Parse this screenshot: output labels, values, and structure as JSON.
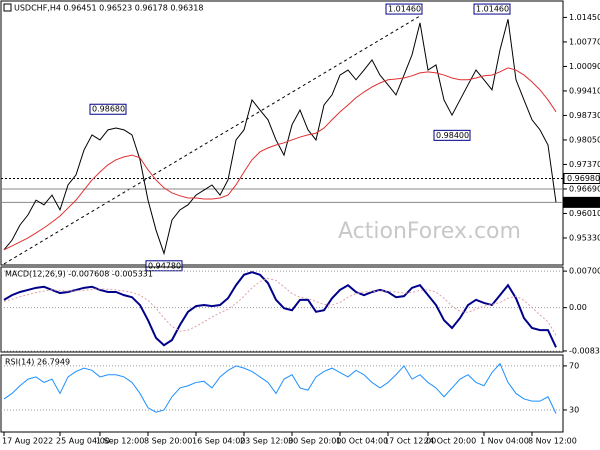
{
  "chart_data": [
    {
      "type": "line",
      "title": "USDCHF,H4 0.96451 0.96523 0.96178 0.96318",
      "watermark": "ActionForex.com",
      "categories": [
        "17 Aug 2022",
        null,
        null,
        null,
        null,
        null,
        null,
        "25 Aug 04:00",
        null,
        null,
        null,
        null,
        "1 Sep 12:00",
        null,
        null,
        null,
        null,
        null,
        "8 Sep 20:00",
        null,
        null,
        null,
        null,
        null,
        "16 Sep 04:00",
        null,
        null,
        null,
        null,
        null,
        "23 Sep 12:00",
        null,
        null,
        null,
        null,
        null,
        "30 Sep 20:00",
        null,
        null,
        null,
        null,
        null,
        "10 Oct 04:00",
        null,
        null,
        null,
        null,
        null,
        "17 Oct 12:00",
        null,
        null,
        null,
        null,
        "24 Oct 20:00",
        null,
        null,
        null,
        null,
        null,
        null,
        "1 Nov 04:00",
        null,
        null,
        null,
        null,
        null,
        "8 Nov 12:00",
        null,
        null,
        null
      ],
      "series": [
        {
          "color": "#000000",
          "values": [
            0.95,
            0.9527,
            0.9569,
            0.9597,
            0.9638,
            0.9625,
            0.9652,
            0.9611,
            0.968,
            0.9708,
            0.9777,
            0.9819,
            0.9805,
            0.9833,
            0.9838,
            0.9833,
            0.9819,
            0.975,
            0.9638,
            0.9555,
            0.949,
            0.9583,
            0.9611,
            0.9625,
            0.9652,
            0.9666,
            0.968,
            0.9652,
            0.9694,
            0.9805,
            0.9833,
            0.9916,
            0.9888,
            0.9861,
            0.9805,
            0.9763,
            0.9847,
            0.9888,
            0.9833,
            0.9805,
            0.9902,
            0.993,
            0.9985,
            0.9999,
            0.9972,
            0.9999,
            1.0027,
            0.9985,
            0.9958,
            0.993,
            0.9985,
            1.0041,
            1.013,
            0.9999,
            1.0013,
            0.9916,
            0.9874,
            0.9916,
            0.9958,
            0.9999,
            0.9972,
            0.9944,
            1.0055,
            1.014,
            0.9972,
            0.9916,
            0.9861,
            0.9833,
            0.9791,
            0.96318
          ]
        },
        {
          "color": "#e03030",
          "values": [
            0.95,
            0.9511,
            0.9522,
            0.9533,
            0.9547,
            0.9561,
            0.9577,
            0.9594,
            0.9616,
            0.9638,
            0.9666,
            0.9694,
            0.9716,
            0.9736,
            0.975,
            0.9758,
            0.9763,
            0.9755,
            0.9722,
            0.9694,
            0.9672,
            0.9658,
            0.965,
            0.9644,
            0.9644,
            0.9641,
            0.9641,
            0.9644,
            0.9652,
            0.968,
            0.9716,
            0.975,
            0.9772,
            0.9783,
            0.9791,
            0.9797,
            0.9805,
            0.9813,
            0.9819,
            0.9824,
            0.9838,
            0.9861,
            0.9883,
            0.9902,
            0.9922,
            0.9938,
            0.9952,
            0.9963,
            0.9972,
            0.9974,
            0.9977,
            0.9983,
            0.9991,
            0.9994,
            0.9991,
            0.9985,
            0.9977,
            0.9972,
            0.9972,
            0.9977,
            0.9983,
            0.9985,
            0.9994,
            1.0005,
            0.9999,
            0.9985,
            0.9966,
            0.9944,
            0.9916,
            0.9883
          ]
        }
      ],
      "trendline": [
        0.9461,
        1.0149
      ],
      "ylim": [
        0.9458,
        1.0185
      ],
      "yticks": [
        {
          "value": 1.0145,
          "label": "1.01450"
        },
        {
          "value": 1.0077,
          "label": "1.00770"
        },
        {
          "value": 1.0009,
          "label": "1.00090"
        },
        {
          "value": 0.9941,
          "label": "0.99410"
        },
        {
          "value": 0.9873,
          "label": "0.98730"
        },
        {
          "value": 0.9805,
          "label": "0.98050"
        },
        {
          "value": 0.9737,
          "label": "0.97370"
        },
        {
          "value": 0.9669,
          "label": "0.96690"
        },
        {
          "value": 0.9601,
          "label": "0.96010"
        },
        {
          "value": 0.9533,
          "label": "0.95330"
        }
      ],
      "levels": [
        {
          "value": 0.9698,
          "label": "0.96980"
        },
        {
          "value": 0.96318,
          "label": "0.96318"
        }
      ],
      "annotations": [
        {
          "value": 0.9868,
          "label": "0.98680"
        },
        {
          "value": 0.9478,
          "label": "0.94780"
        },
        {
          "value": 1.0146,
          "label": "1.01460"
        },
        {
          "value": 0.984,
          "label": "0.98400"
        },
        {
          "value": 1.0146,
          "label": "1.01460"
        }
      ]
    },
    {
      "type": "line",
      "title": "MACD(12,26,9) -0.007608 -0.005331",
      "series": [
        {
          "color": "#00008b",
          "values": [
            0.0015,
            0.0024,
            0.003,
            0.0034,
            0.0038,
            0.004,
            0.0034,
            0.0028,
            0.003,
            0.0034,
            0.0038,
            0.004,
            0.0034,
            0.003,
            0.003,
            0.0024,
            0.002,
            0.0005,
            -0.0024,
            -0.0058,
            -0.0072,
            -0.0062,
            -0.0033,
            -0.0008,
            0.0003,
            0.0005,
            0.0003,
            0.0005,
            0.0018,
            0.0043,
            0.0063,
            0.0068,
            0.0063,
            0.0047,
            0.0015,
            -0.0001,
            -0.0005,
            0.0015,
            0.0015,
            -0.0008,
            -0.0005,
            0.0018,
            0.0034,
            0.0043,
            0.003,
            0.0024,
            0.003,
            0.0034,
            0.003,
            0.002,
            0.0022,
            0.0038,
            0.0043,
            0.0024,
            0.0005,
            -0.0024,
            -0.0039,
            -0.002,
            0.0005,
            0.0015,
            0.0009,
            0.0005,
            0.0024,
            0.0043,
            0.0018,
            -0.002,
            -0.0039,
            -0.0043,
            -0.0043,
            -0.007608
          ]
        },
        {
          "color": "#e0a0a8",
          "dashed": true,
          "values": [
            0.0012,
            0.0016,
            0.0021,
            0.0025,
            0.0029,
            0.0032,
            0.0034,
            0.0033,
            0.0032,
            0.0032,
            0.0033,
            0.0035,
            0.0036,
            0.0035,
            0.0034,
            0.0032,
            0.0029,
            0.0024,
            0.0014,
            -0.0001,
            -0.002,
            -0.0036,
            -0.0045,
            -0.0043,
            -0.0036,
            -0.0027,
            -0.0018,
            -0.001,
            -0.0003,
            0.0008,
            0.0022,
            0.0038,
            0.005,
            0.0056,
            0.0052,
            0.004,
            0.0027,
            0.002,
            0.0017,
            0.0012,
            0.0006,
            0.0005,
            0.001,
            0.002,
            0.0027,
            0.003,
            0.0031,
            0.0032,
            0.0032,
            0.003,
            0.0028,
            0.0029,
            0.0033,
            0.0034,
            0.003,
            0.0018,
            0.0003,
            -0.0007,
            -0.0009,
            -0.0003,
            0.0003,
            0.0006,
            0.001,
            0.0018,
            0.0022,
            0.0014,
            0.0,
            -0.0014,
            -0.0027,
            -0.005331
          ]
        }
      ],
      "ylim": [
        -0.0085,
        0.0076
      ],
      "yticks": [
        0.007002,
        {
          "value": 0,
          "label": "0.00"
        },
        -0.008304
      ]
    },
    {
      "type": "line",
      "title": "RSI(14) 26.7949",
      "series": [
        {
          "color": "#1e90ff",
          "values": [
            40,
            45,
            52,
            58,
            60,
            55,
            58,
            45,
            60,
            65,
            68,
            66,
            60,
            62,
            62,
            60,
            55,
            45,
            32,
            28,
            30,
            42,
            50,
            52,
            55,
            56,
            50,
            60,
            66,
            70,
            68,
            65,
            60,
            55,
            45,
            58,
            62,
            50,
            48,
            60,
            65,
            68,
            64,
            60,
            66,
            62,
            55,
            50,
            55,
            62,
            70,
            58,
            62,
            55,
            50,
            42,
            50,
            58,
            62,
            55,
            52,
            64,
            72,
            55,
            45,
            40,
            38,
            38,
            42,
            26.7949
          ]
        }
      ],
      "ylim": [
        10,
        79
      ],
      "yticks": [
        70,
        30
      ],
      "grid": true
    }
  ]
}
